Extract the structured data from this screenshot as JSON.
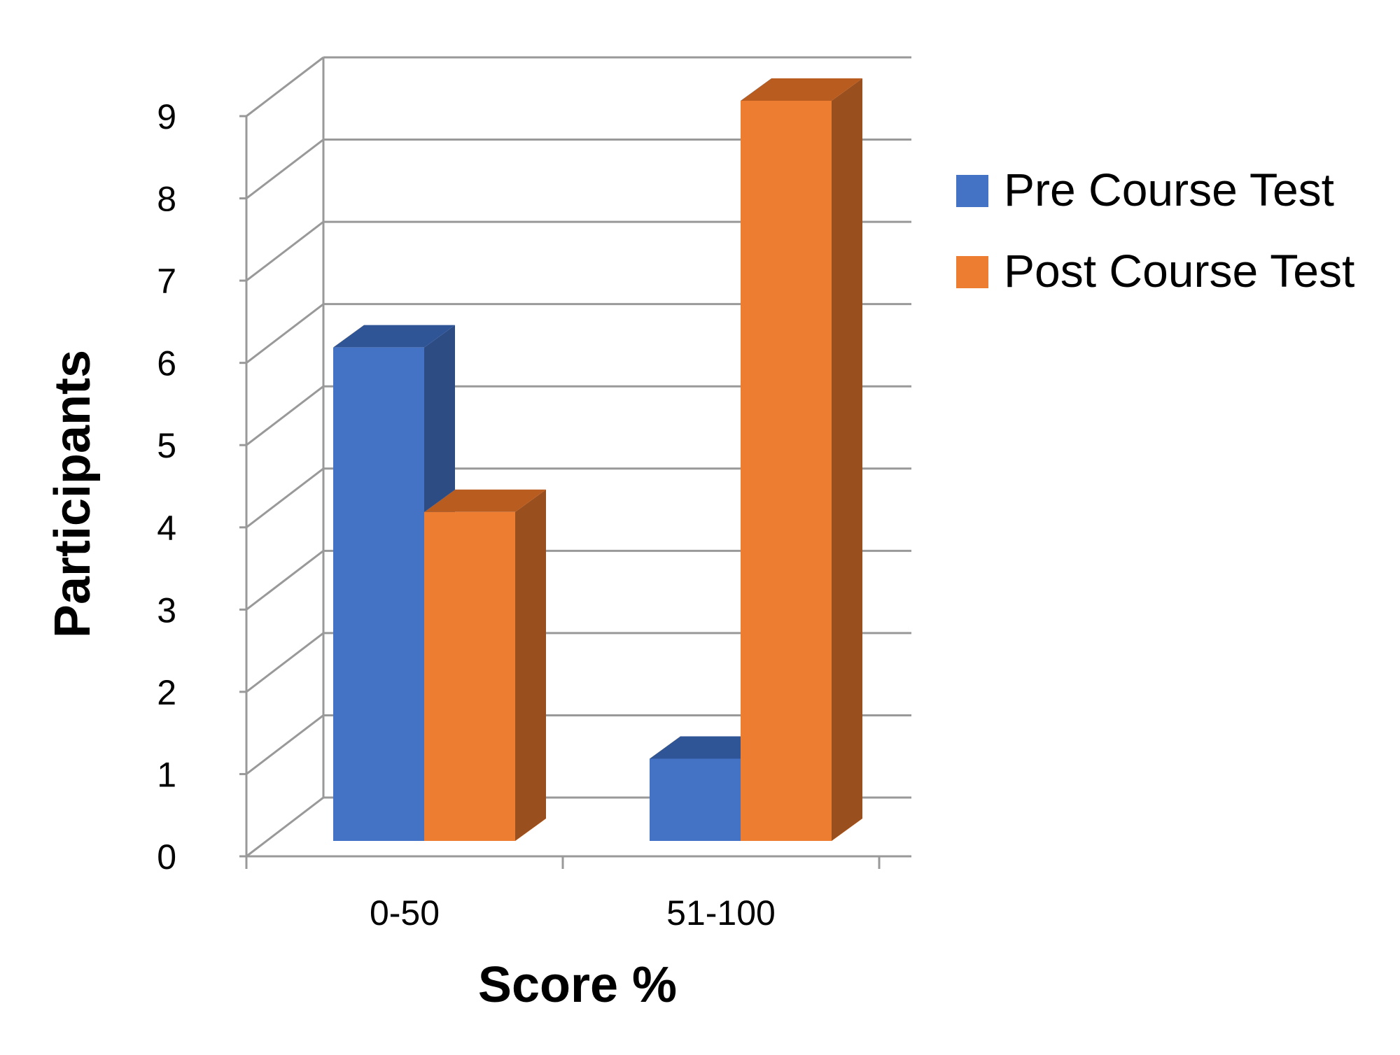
{
  "chart_data": {
    "type": "bar",
    "title": "",
    "xlabel": "Score %",
    "ylabel": "Participants",
    "categories": [
      "0-50",
      "51-100"
    ],
    "series": [
      {
        "name": "Pre Course Test",
        "values": [
          6,
          1
        ],
        "color": "#4472C4",
        "side_color": "#2E4C84",
        "top_color": "#2F5597"
      },
      {
        "name": "Post Course Test",
        "values": [
          4,
          9
        ],
        "color": "#ED7D31",
        "side_color": "#9A4F1E",
        "top_color": "#B85C20"
      }
    ],
    "yticks": [
      "0",
      "1",
      "2",
      "3",
      "4",
      "5",
      "6",
      "7",
      "8",
      "9"
    ],
    "ylim": [
      0,
      9
    ],
    "grid": true,
    "legend": "right",
    "style": "3d-clustered-column"
  }
}
